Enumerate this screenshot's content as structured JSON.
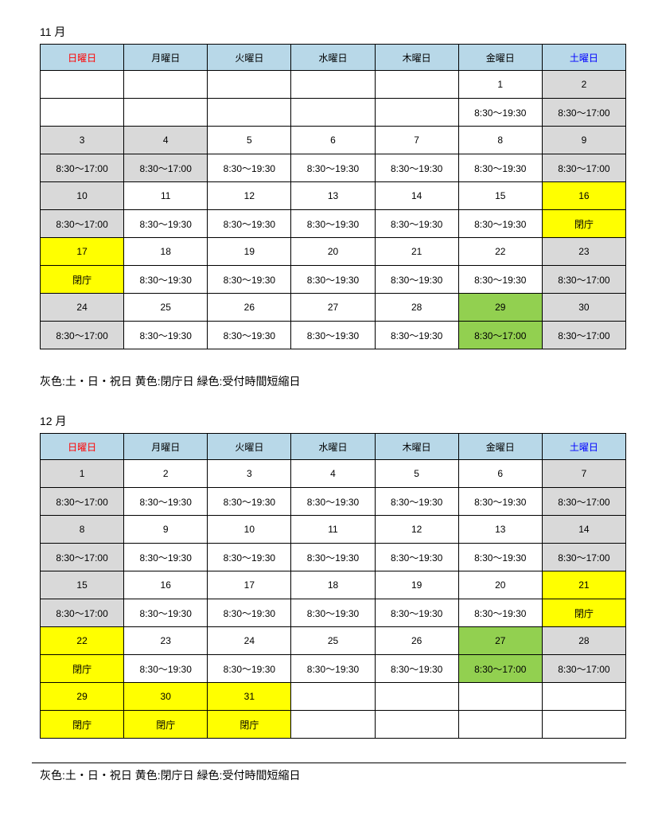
{
  "headers": {
    "sun": "日曜日",
    "mon": "月曜日",
    "tue": "火曜日",
    "wed": "水曜日",
    "thu": "木曜日",
    "fri": "金曜日",
    "sat": "土曜日"
  },
  "month11": {
    "title": "11 月",
    "rows": [
      [
        {
          "t": "",
          "c": "empty"
        },
        {
          "t": "",
          "c": "empty"
        },
        {
          "t": "",
          "c": "empty"
        },
        {
          "t": "",
          "c": "empty"
        },
        {
          "t": "",
          "c": "empty"
        },
        {
          "t": "1",
          "c": ""
        },
        {
          "t": "2",
          "c": "gray"
        }
      ],
      [
        {
          "t": "",
          "c": "empty"
        },
        {
          "t": "",
          "c": "empty"
        },
        {
          "t": "",
          "c": "empty"
        },
        {
          "t": "",
          "c": "empty"
        },
        {
          "t": "",
          "c": "empty"
        },
        {
          "t": "8:30～19:30",
          "c": ""
        },
        {
          "t": "8:30～17:00",
          "c": "gray"
        }
      ],
      [
        {
          "t": "3",
          "c": "gray"
        },
        {
          "t": "4",
          "c": "gray bold"
        },
        {
          "t": "5",
          "c": ""
        },
        {
          "t": "6",
          "c": ""
        },
        {
          "t": "7",
          "c": ""
        },
        {
          "t": "8",
          "c": ""
        },
        {
          "t": "9",
          "c": "gray"
        }
      ],
      [
        {
          "t": "8:30～17:00",
          "c": "gray"
        },
        {
          "t": "8:30～17:00",
          "c": "gray bold"
        },
        {
          "t": "8:30～19:30",
          "c": ""
        },
        {
          "t": "8:30～19:30",
          "c": ""
        },
        {
          "t": "8:30～19:30",
          "c": ""
        },
        {
          "t": "8:30～19:30",
          "c": ""
        },
        {
          "t": "8:30～17:00",
          "c": "gray"
        }
      ],
      [
        {
          "t": "10",
          "c": "gray"
        },
        {
          "t": "11",
          "c": ""
        },
        {
          "t": "12",
          "c": ""
        },
        {
          "t": "13",
          "c": ""
        },
        {
          "t": "14",
          "c": ""
        },
        {
          "t": "15",
          "c": ""
        },
        {
          "t": "16",
          "c": "yellow"
        }
      ],
      [
        {
          "t": "8:30～17:00",
          "c": "gray"
        },
        {
          "t": "8:30～19:30",
          "c": ""
        },
        {
          "t": "8:30～19:30",
          "c": ""
        },
        {
          "t": "8:30～19:30",
          "c": ""
        },
        {
          "t": "8:30～19:30",
          "c": ""
        },
        {
          "t": "8:30～19:30",
          "c": ""
        },
        {
          "t": "閉庁",
          "c": "yellow"
        }
      ],
      [
        {
          "t": "17",
          "c": "yellow"
        },
        {
          "t": "18",
          "c": ""
        },
        {
          "t": "19",
          "c": ""
        },
        {
          "t": "20",
          "c": ""
        },
        {
          "t": "21",
          "c": ""
        },
        {
          "t": "22",
          "c": ""
        },
        {
          "t": "23",
          "c": "gray"
        }
      ],
      [
        {
          "t": "閉庁",
          "c": "yellow"
        },
        {
          "t": "8:30～19:30",
          "c": ""
        },
        {
          "t": "8:30～19:30",
          "c": ""
        },
        {
          "t": "8:30～19:30",
          "c": ""
        },
        {
          "t": "8:30～19:30",
          "c": ""
        },
        {
          "t": "8:30～19:30",
          "c": ""
        },
        {
          "t": "8:30～17:00",
          "c": "gray"
        }
      ],
      [
        {
          "t": "24",
          "c": "gray"
        },
        {
          "t": "25",
          "c": ""
        },
        {
          "t": "26",
          "c": ""
        },
        {
          "t": "27",
          "c": ""
        },
        {
          "t": "28",
          "c": "bold"
        },
        {
          "t": "29",
          "c": "green"
        },
        {
          "t": "30",
          "c": "gray"
        }
      ],
      [
        {
          "t": "8:30～17:00",
          "c": "gray"
        },
        {
          "t": "8:30～19:30",
          "c": ""
        },
        {
          "t": "8:30～19:30",
          "c": ""
        },
        {
          "t": "8:30～19:30",
          "c": ""
        },
        {
          "t": "8:30～19:30",
          "c": ""
        },
        {
          "t": "8:30～17:00",
          "c": "green"
        },
        {
          "t": "8:30～17:00",
          "c": "gray"
        }
      ]
    ]
  },
  "month12": {
    "title": "12 月",
    "rows": [
      [
        {
          "t": "1",
          "c": "gray"
        },
        {
          "t": "2",
          "c": ""
        },
        {
          "t": "3",
          "c": ""
        },
        {
          "t": "4",
          "c": ""
        },
        {
          "t": "5",
          "c": ""
        },
        {
          "t": "6",
          "c": ""
        },
        {
          "t": "7",
          "c": "gray"
        }
      ],
      [
        {
          "t": "8:30～17:00",
          "c": "gray"
        },
        {
          "t": "8:30～19:30",
          "c": ""
        },
        {
          "t": "8:30～19:30",
          "c": ""
        },
        {
          "t": "8:30～19:30",
          "c": ""
        },
        {
          "t": "8:30～19:30",
          "c": ""
        },
        {
          "t": "8:30～19:30",
          "c": ""
        },
        {
          "t": "8:30～17:00",
          "c": "gray"
        }
      ],
      [
        {
          "t": "8",
          "c": "gray"
        },
        {
          "t": "9",
          "c": ""
        },
        {
          "t": "10",
          "c": ""
        },
        {
          "t": "11",
          "c": ""
        },
        {
          "t": "12",
          "c": ""
        },
        {
          "t": "13",
          "c": ""
        },
        {
          "t": "14",
          "c": "gray"
        }
      ],
      [
        {
          "t": "8:30～17:00",
          "c": "gray"
        },
        {
          "t": "8:30～19:30",
          "c": ""
        },
        {
          "t": "8:30～19:30",
          "c": ""
        },
        {
          "t": "8:30～19:30",
          "c": ""
        },
        {
          "t": "8:30～19:30",
          "c": ""
        },
        {
          "t": "8:30～19:30",
          "c": ""
        },
        {
          "t": "8:30～17:00",
          "c": "gray"
        }
      ],
      [
        {
          "t": "15",
          "c": "gray"
        },
        {
          "t": "16",
          "c": ""
        },
        {
          "t": "17",
          "c": ""
        },
        {
          "t": "18",
          "c": ""
        },
        {
          "t": "19",
          "c": ""
        },
        {
          "t": "20",
          "c": ""
        },
        {
          "t": "21",
          "c": "yellow"
        }
      ],
      [
        {
          "t": "8:30～17:00",
          "c": "gray"
        },
        {
          "t": "8:30～19:30",
          "c": ""
        },
        {
          "t": "8:30～19:30",
          "c": ""
        },
        {
          "t": "8:30～19:30",
          "c": ""
        },
        {
          "t": "8:30～19:30",
          "c": ""
        },
        {
          "t": "8:30～19:30",
          "c": ""
        },
        {
          "t": "閉庁",
          "c": "yellow"
        }
      ],
      [
        {
          "t": "22",
          "c": "yellow"
        },
        {
          "t": "23",
          "c": ""
        },
        {
          "t": "24",
          "c": ""
        },
        {
          "t": "25",
          "c": ""
        },
        {
          "t": "26",
          "c": ""
        },
        {
          "t": "27",
          "c": "green"
        },
        {
          "t": "28",
          "c": "gray"
        }
      ],
      [
        {
          "t": "閉庁",
          "c": "yellow"
        },
        {
          "t": "8:30～19:30",
          "c": ""
        },
        {
          "t": "8:30～19:30",
          "c": ""
        },
        {
          "t": "8:30～19:30",
          "c": ""
        },
        {
          "t": "8:30～19:30",
          "c": ""
        },
        {
          "t": "8:30～17:00",
          "c": "green"
        },
        {
          "t": "8:30～17:00",
          "c": "gray"
        }
      ],
      [
        {
          "t": "29",
          "c": "yellow"
        },
        {
          "t": "30",
          "c": "yellow"
        },
        {
          "t": "31",
          "c": "yellow"
        },
        {
          "t": "",
          "c": "empty"
        },
        {
          "t": "",
          "c": "empty"
        },
        {
          "t": "",
          "c": "empty"
        },
        {
          "t": "",
          "c": "empty"
        }
      ],
      [
        {
          "t": "閉庁",
          "c": "yellow"
        },
        {
          "t": "閉庁",
          "c": "yellow"
        },
        {
          "t": "閉庁",
          "c": "yellow"
        },
        {
          "t": "",
          "c": "empty"
        },
        {
          "t": "",
          "c": "empty"
        },
        {
          "t": "",
          "c": "empty"
        },
        {
          "t": "",
          "c": "empty"
        }
      ]
    ]
  },
  "legend": "灰色:土・日・祝日  黄色:閉庁日  緑色:受付時間短縮日"
}
